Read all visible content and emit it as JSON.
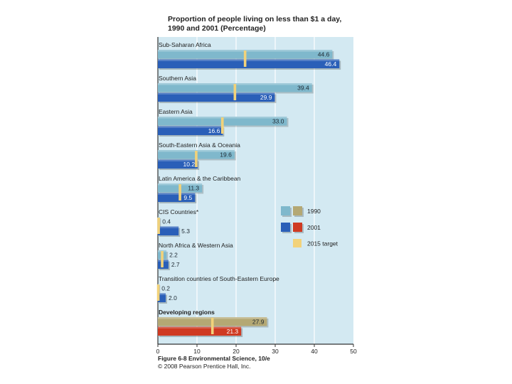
{
  "chart_data": {
    "type": "bar",
    "orientation": "horizontal",
    "title": "Proportion of people living on less than $1 a day, 1990 and 2001 (Percentage)",
    "title_lines": [
      "Proportion of people living on less than $1 a day,",
      "1990 and 2001 (Percentage)"
    ],
    "categories": [
      "Sub-Saharan Africa",
      "Southern Asia",
      "Eastern Asia",
      "South-Eastern Asia & Oceania",
      "Latin America & the Caribbean",
      "CIS Countries*",
      "North Africa & Western Asia",
      "Transition countries of South-Eastern Europe",
      "Developing regions"
    ],
    "series": [
      {
        "name": "1990",
        "values": [
          44.6,
          39.4,
          33.0,
          19.6,
          11.3,
          0.4,
          2.2,
          0.2,
          27.9
        ]
      },
      {
        "name": "2001",
        "values": [
          46.4,
          29.9,
          16.6,
          10.2,
          9.5,
          5.3,
          2.7,
          2.0,
          21.3
        ]
      },
      {
        "name": "2015 target",
        "values": [
          22.3,
          19.7,
          16.5,
          9.8,
          5.65,
          0.2,
          1.1,
          0.1,
          13.95
        ]
      }
    ],
    "value_labels_1990": [
      "44.6",
      "39.4",
      "33.0",
      "19.6",
      "11.3",
      "0.4",
      "2.2",
      "0.2",
      "27.9"
    ],
    "value_labels_2001": [
      "46.4",
      "29.9",
      "16.6",
      "10.2",
      "9.5",
      "5.3",
      "2.7",
      "2.0",
      "21.3"
    ],
    "highlight_category": "Developing regions",
    "x_ticks": [
      "0",
      "10",
      "20",
      "30",
      "40",
      "50"
    ],
    "xlim": [
      0,
      50
    ],
    "xlabel": "",
    "ylabel": "",
    "grid": true,
    "legend_position": "right",
    "colors": {
      "c1990": "#7fb8cc",
      "c2001": "#2a5fb8",
      "c1990_total": "#b4a874",
      "c2001_total": "#cf3a22",
      "target": "#f2d27a",
      "plot_bg": "#d3e9f2",
      "grid": "#ffffff"
    }
  },
  "caption": {
    "figure": "Figure 6-8 Environmental Science, 10/e",
    "copyright": "© 2008 Pearson Prentice Hall, Inc."
  }
}
